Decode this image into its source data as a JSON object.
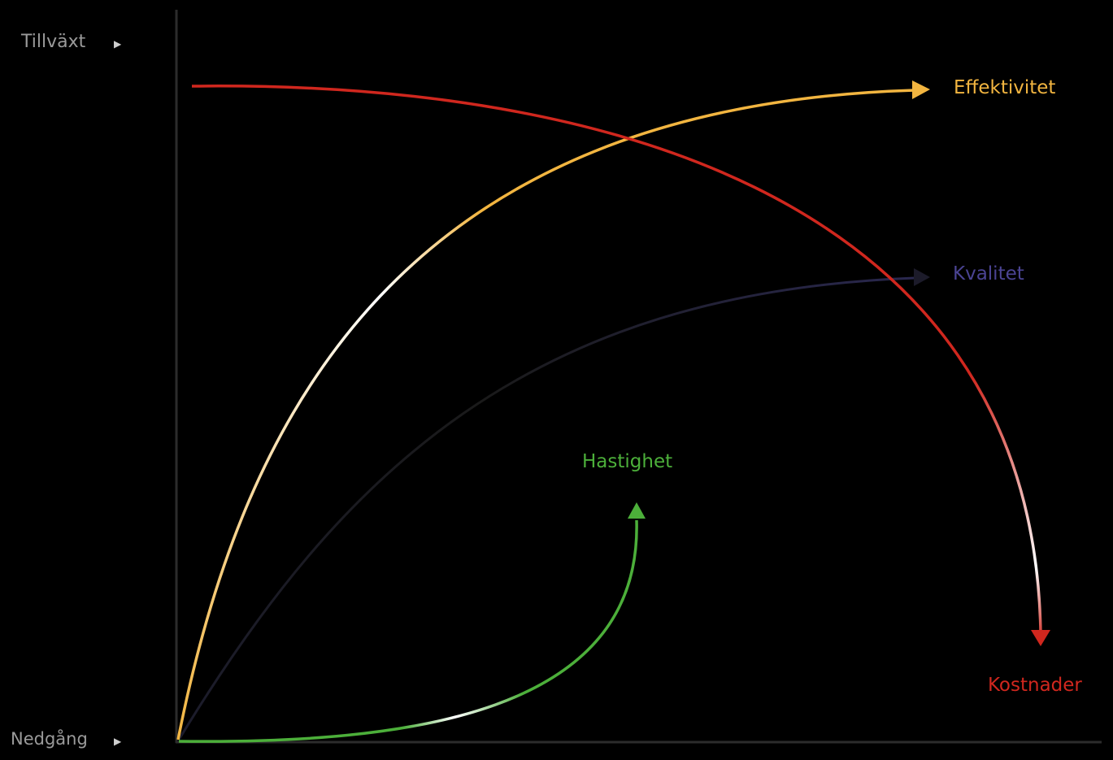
{
  "axis": {
    "top_label": "Tillväxt",
    "bottom_label": "Nedgång",
    "arrow_glyph": "▶"
  },
  "curves": {
    "effektivitet": {
      "label": "Effektivitet",
      "color": "#f2b540"
    },
    "kvalitet": {
      "label": "Kvalitet",
      "color": "#4b4494"
    },
    "hastighet": {
      "label": "Hastighet",
      "color": "#4caf3a"
    },
    "kostnader": {
      "label": "Kostnader",
      "color": "#d0271e"
    }
  }
}
